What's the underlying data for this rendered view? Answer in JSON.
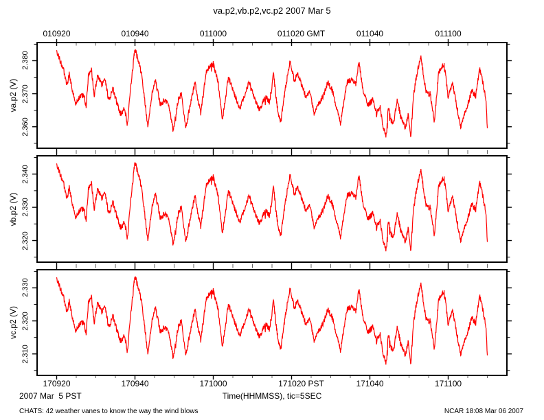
{
  "header": {
    "title": "va.p2,vb.p2,vc.p2 2007 Mar 5"
  },
  "bottom": {
    "date_label": "2007 Mar  5 PST",
    "xlabel": "Time(HHMMSS), tic=5SEC"
  },
  "footer": {
    "left": "CHATS: 42 weather vanes to know the way the wind blows",
    "right": "NCAR 18:08 Mar 06 2007"
  },
  "colors": {
    "trace": "#ff0000",
    "axis": "#000000",
    "minor_tick": "#606060",
    "background": "#ffffff"
  },
  "chart_data": {
    "type": "line",
    "title": "va.p2,vb.p2,vc.p2 2007 Mar 5",
    "legend": "none",
    "grid": false,
    "x_axis": {
      "label": "Time(HHMMSS), tic=5SEC",
      "tic_interval_sec": 5,
      "major_interval_sec": 20,
      "xlim_sec": [
        -5,
        115
      ],
      "data_span_sec": [
        0,
        110
      ],
      "top_ticks": [
        {
          "time": "010920",
          "sec": 0
        },
        {
          "time": "010940",
          "sec": 20
        },
        {
          "time": "011000",
          "sec": 40
        },
        {
          "time": "011020",
          "sec": 60,
          "suffix": "GMT"
        },
        {
          "time": "011040",
          "sec": 80
        },
        {
          "time": "011100",
          "sec": 100
        }
      ],
      "bottom_ticks": [
        {
          "time": "170920",
          "sec": 0
        },
        {
          "time": "170940",
          "sec": 20
        },
        {
          "time": "171000",
          "sec": 40
        },
        {
          "time": "171020",
          "sec": 60,
          "suffix": "PST"
        },
        {
          "time": "171040",
          "sec": 80
        },
        {
          "time": "171100",
          "sec": 100
        }
      ]
    },
    "panels": [
      {
        "name": "va.p2",
        "ylabel": "va.p2 (V)",
        "ytick_labels": [
          "2.360",
          "2.370",
          "2.380"
        ],
        "ytick_values": [
          2.36,
          2.37,
          2.38
        ],
        "minor_ytick_step": 0.005,
        "ylim": [
          2.3535,
          2.3855
        ],
        "offset_v": 0.0
      },
      {
        "name": "vb.p2",
        "ylabel": "vb.p2 (V)",
        "ytick_labels": [
          "2.320",
          "2.330",
          "2.340"
        ],
        "ytick_values": [
          2.32,
          2.33,
          2.34
        ],
        "minor_ytick_step": 0.005,
        "ylim": [
          2.3135,
          2.3455
        ],
        "offset_v": -0.04
      },
      {
        "name": "vc.p2",
        "ylabel": "vc.p2 (V)",
        "ytick_labels": [
          "2.310",
          "2.320",
          "2.330"
        ],
        "ytick_values": [
          2.31,
          2.32,
          2.33
        ],
        "minor_ytick_step": 0.005,
        "ylim": [
          2.3035,
          2.3355
        ],
        "offset_v": -0.05
      }
    ],
    "series_shape": {
      "description": "Common waveform (va.p2 values, volts); vb.p2 and vc.p2 equal this plus panel offset_v. High-frequency sensor noise ~ +/-0.001 V rides on it.",
      "t_sec": [
        0,
        1.8,
        2.6,
        3.2,
        4.0,
        4.9,
        5.8,
        7.0,
        7.5,
        8.1,
        8.9,
        9.6,
        10.5,
        11.6,
        12.3,
        13.3,
        14.4,
        15.4,
        16.3,
        17.4,
        18.1,
        18.9,
        20.0,
        21.0,
        21.6,
        22.5,
        23.3,
        24.2,
        25.1,
        26.5,
        27.7,
        28.8,
        29.8,
        31.0,
        31.8,
        33.0,
        34.0,
        35.3,
        36.8,
        38.2,
        40.0,
        41.2,
        42.3,
        43.9,
        45.3,
        46.7,
        47.9,
        49.1,
        50.5,
        51.8,
        53.2,
        54.4,
        55.4,
        56.3,
        57.2,
        58.4,
        59.6,
        60.7,
        61.6,
        62.8,
        63.7,
        64.6,
        65.8,
        66.8,
        68.1,
        69.3,
        70.4,
        71.6,
        72.5,
        73.3,
        74.2,
        75.4,
        76.5,
        77.2,
        78.2,
        79.5,
        80.7,
        81.8,
        82.6,
        83.3,
        84.2,
        84.7,
        85.3,
        86.0,
        87.0,
        87.9,
        89.1,
        89.8,
        90.4,
        91.2,
        92.0,
        93.0,
        93.9,
        94.4,
        95.4,
        96.5,
        97.5,
        98.6,
        99.3,
        100.0,
        101.1,
        101.9,
        103.2,
        104.2,
        104.9,
        106.1,
        107.0,
        108.1,
        108.9,
        109.6,
        110.0
      ],
      "v": [
        2.383,
        2.377,
        2.3724,
        2.376,
        2.371,
        2.3665,
        2.369,
        2.3695,
        2.366,
        2.3755,
        2.3775,
        2.369,
        2.376,
        2.3725,
        2.3745,
        2.368,
        2.3715,
        2.367,
        2.364,
        2.3655,
        2.3605,
        2.372,
        2.3838,
        2.379,
        2.3764,
        2.368,
        2.36,
        2.369,
        2.3744,
        2.3666,
        2.3685,
        2.3655,
        2.3586,
        2.368,
        2.37,
        2.3594,
        2.366,
        2.3734,
        2.364,
        2.3766,
        2.379,
        2.374,
        2.362,
        2.375,
        2.37,
        2.3655,
        2.369,
        2.3734,
        2.3686,
        2.365,
        2.369,
        2.3675,
        2.376,
        2.366,
        2.361,
        2.3715,
        2.3796,
        2.374,
        2.376,
        2.372,
        2.3686,
        2.371,
        2.364,
        2.367,
        2.3695,
        2.3736,
        2.371,
        2.3654,
        2.361,
        2.367,
        2.3734,
        2.3745,
        2.373,
        2.38,
        2.371,
        2.3666,
        2.368,
        2.364,
        2.366,
        2.36,
        2.357,
        2.366,
        2.362,
        2.361,
        2.368,
        2.363,
        2.3596,
        2.364,
        2.3566,
        2.37,
        2.376,
        2.3816,
        2.374,
        2.3706,
        2.37,
        2.3614,
        2.376,
        2.3785,
        2.3766,
        2.3686,
        2.3736,
        2.368,
        2.3596,
        2.364,
        2.3666,
        2.371,
        2.369,
        2.378,
        2.373,
        2.369,
        2.3594
      ]
    },
    "noise_amplitude_v": 0.0009,
    "line_color": "#ff0000"
  }
}
